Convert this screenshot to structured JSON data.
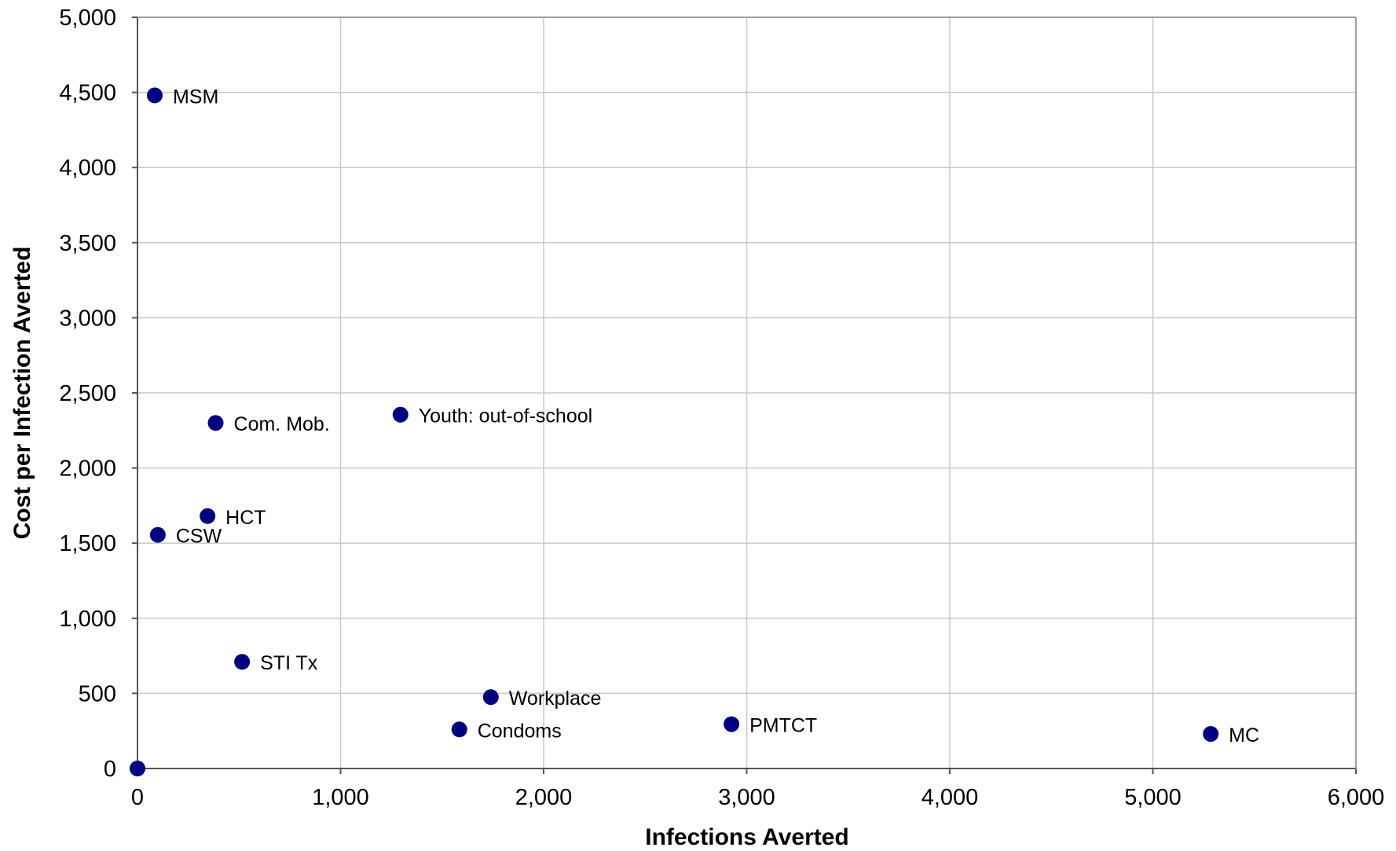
{
  "chart_data": {
    "type": "scatter",
    "title": "",
    "xlabel": "Infections Averted",
    "ylabel": "Cost per Infection Averted",
    "xlim": [
      0,
      6000
    ],
    "ylim": [
      0,
      5000
    ],
    "x_ticks": [
      0,
      1000,
      2000,
      3000,
      4000,
      5000,
      6000
    ],
    "y_ticks": [
      0,
      500,
      1000,
      1500,
      2000,
      2500,
      3000,
      3500,
      4000,
      4500,
      5000
    ],
    "x_tick_labels": [
      "0",
      "1,000",
      "2,000",
      "3,000",
      "4,000",
      "5,000",
      "6,000"
    ],
    "y_tick_labels": [
      "0",
      "500",
      "1,000",
      "1,500",
      "2,000",
      "2,500",
      "3,000",
      "3,500",
      "4,000",
      "4,500",
      "5,000"
    ],
    "grid": true,
    "marker_color": "#000080",
    "points": [
      {
        "label": "MSM",
        "x": 85,
        "y": 4480
      },
      {
        "label": "Com. Mob.",
        "x": 385,
        "y": 2300
      },
      {
        "label": "Youth: out-of-school",
        "x": 1295,
        "y": 2355
      },
      {
        "label": "HCT",
        "x": 345,
        "y": 1680
      },
      {
        "label": "CSW",
        "x": 100,
        "y": 1555
      },
      {
        "label": "STI Tx",
        "x": 515,
        "y": 710
      },
      {
        "label": "Workplace",
        "x": 1740,
        "y": 475
      },
      {
        "label": "Condoms",
        "x": 1585,
        "y": 260
      },
      {
        "label": "PMTCT",
        "x": 2925,
        "y": 295
      },
      {
        "label": "MC",
        "x": 5285,
        "y": 230
      },
      {
        "label": "",
        "x": 0,
        "y": 0
      }
    ]
  }
}
